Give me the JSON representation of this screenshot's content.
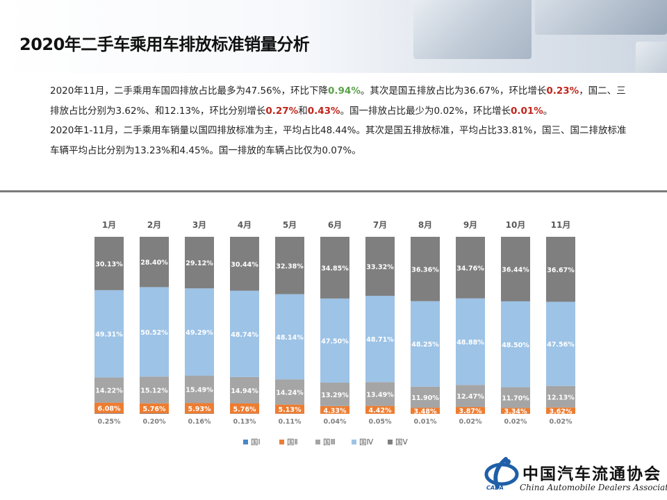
{
  "header": {
    "title": "2020年二手车乘用车排放标准销量分析"
  },
  "description": {
    "p1": [
      {
        "text": "2020年11月，二手乘用车国四排放占比最多为47.56%，环比下降",
        "style": ""
      },
      {
        "text": "0.94%",
        "style": "g"
      },
      {
        "text": "。其次是国五排放占比为36.67%，环比增长",
        "style": ""
      },
      {
        "text": "0.23%",
        "style": "r"
      },
      {
        "text": "，国二、三排放占比分别为3.62%、和12.13%，环比分别增长",
        "style": ""
      },
      {
        "text": "0.27%",
        "style": "r"
      },
      {
        "text": "和",
        "style": ""
      },
      {
        "text": "0.43%",
        "style": "r"
      },
      {
        "text": "。国一排放占比最少为0.02%，环比增长",
        "style": ""
      },
      {
        "text": "0.01%",
        "style": "r"
      },
      {
        "text": "。",
        "style": ""
      }
    ],
    "p2": "2020年1-11月，二手乘用车销量以国四排放标准为主，平均占比48.44%。其次是国五排放标准，平均占比33.81%，国三、国二排放标准车辆平均占比分别为13.23%和4.45%。国一排放的车辆占比仅为0.07%。"
  },
  "chart_data": {
    "type": "bar",
    "stacked": true,
    "normalized": true,
    "categories": [
      "1月",
      "2月",
      "3月",
      "4月",
      "5月",
      "6月",
      "7月",
      "8月",
      "9月",
      "10月",
      "11月"
    ],
    "series": [
      {
        "name": "国Ⅰ",
        "color": "#4a86c8",
        "values": [
          0.25,
          0.2,
          0.16,
          0.13,
          0.11,
          0.04,
          0.05,
          0.01,
          0.02,
          0.02,
          0.02
        ]
      },
      {
        "name": "国Ⅱ",
        "color": "#ed7d31",
        "values": [
          6.08,
          5.76,
          5.93,
          5.76,
          5.13,
          4.33,
          4.42,
          3.48,
          3.87,
          3.34,
          3.62
        ]
      },
      {
        "name": "国Ⅲ",
        "color": "#a5a5a5",
        "values": [
          14.22,
          15.12,
          15.49,
          14.94,
          14.24,
          13.29,
          13.49,
          11.9,
          12.47,
          11.7,
          12.13
        ]
      },
      {
        "name": "国Ⅳ",
        "color": "#9dc3e6",
        "values": [
          49.31,
          50.52,
          49.29,
          48.74,
          48.14,
          47.5,
          48.71,
          48.25,
          48.88,
          48.5,
          47.56
        ]
      },
      {
        "name": "国Ⅴ",
        "color": "#7f7f7f",
        "values": [
          30.13,
          28.4,
          29.12,
          30.44,
          32.38,
          34.85,
          33.32,
          36.36,
          34.76,
          36.44,
          36.67
        ]
      }
    ],
    "value_format": "percent_2dp",
    "legend_position": "bottom",
    "grid": false
  },
  "logo": {
    "name_cn": "中国汽车流通协会",
    "name_en": "China Automobile Dealers Association",
    "abbr": "CADA"
  }
}
